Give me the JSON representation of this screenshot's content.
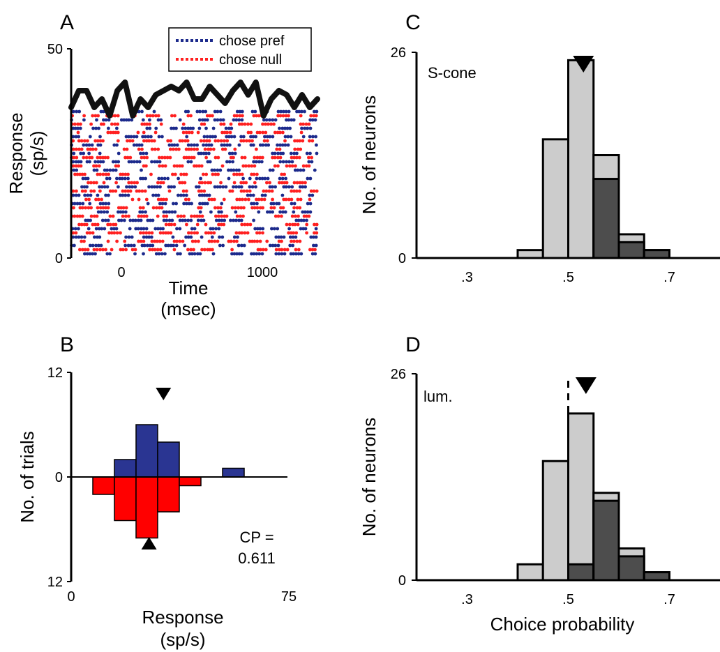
{
  "chart_data": [
    {
      "panel": "A",
      "type": "raster",
      "panel_label": "A",
      "xlabel_line1": "Time",
      "xlabel_line2": "(msec)",
      "ylabel_line1": "Response",
      "ylabel_line2": "(sp/s)",
      "xlim": [
        -300,
        1300
      ],
      "ylim": [
        0,
        50
      ],
      "xticks": [
        0,
        1000
      ],
      "yticks": [
        0,
        50
      ],
      "legend": {
        "placement": "top-right",
        "entries": [
          {
            "label": "chose pref",
            "color": "#1c2a8c"
          },
          {
            "label": "chose null",
            "color": "#ff2020"
          }
        ]
      },
      "raster": {
        "rows": 35,
        "top_value": 35,
        "colors": {
          "pref": "#1c2a8c",
          "null": "#ff2020"
        }
      },
      "psth": {
        "color": "#111111",
        "x": [
          -300,
          -250,
          -200,
          -150,
          -100,
          -50,
          0,
          50,
          100,
          150,
          200,
          250,
          300,
          350,
          400,
          450,
          500,
          550,
          600,
          650,
          700,
          750,
          800,
          850,
          900,
          950,
          1000,
          1050,
          1100,
          1150,
          1200,
          1250,
          1300
        ],
        "y": [
          36,
          40,
          40,
          36,
          38,
          34,
          40,
          42,
          34,
          38,
          36,
          39,
          40,
          41,
          40,
          42,
          38,
          38,
          41,
          39,
          37,
          40,
          42,
          39,
          42,
          34,
          38,
          40,
          39,
          36,
          39,
          36,
          38
        ]
      }
    },
    {
      "panel": "B",
      "type": "bar",
      "panel_label": "B",
      "xlabel_line1": "Response",
      "xlabel_line2": "(sp/s)",
      "ylabel": "No. of trials",
      "xlim": [
        0,
        75
      ],
      "xticks": [
        0,
        75
      ],
      "ytick_labels": [
        "12",
        "0",
        "12"
      ],
      "bin_width": 7.5,
      "pref": {
        "color": "#2a3592",
        "bins": [
          15,
          22.5,
          30,
          37.5,
          52.5
        ],
        "values": [
          2,
          6,
          4,
          0,
          1
        ]
      },
      "null": {
        "color": "#ff0000",
        "bins": [
          7.5,
          15,
          22.5,
          30,
          37.5,
          45
        ],
        "values": [
          2,
          5,
          7,
          4,
          1,
          0
        ]
      },
      "pref_mean": 32,
      "null_mean": 27,
      "annotation_line1": "CP =",
      "annotation_line2": "0.611"
    },
    {
      "panel": "C",
      "type": "bar",
      "panel_label": "C",
      "label": "S-cone",
      "ylabel": "No. of neurons",
      "xlim": [
        0.2,
        0.8
      ],
      "ylim": [
        0,
        26
      ],
      "xticks": [
        ".3",
        ".5",
        ".7"
      ],
      "xtick_values": [
        0.3,
        0.5,
        0.7
      ],
      "yticks": [
        0,
        26
      ],
      "bin_edges": [
        0.4,
        0.45,
        0.5,
        0.55,
        0.6,
        0.65,
        0.7
      ],
      "total": [
        1,
        15,
        25,
        13,
        3,
        1
      ],
      "significant": [
        0,
        0,
        0,
        10,
        2,
        1
      ],
      "colors": {
        "total": "#cccccc",
        "significant": "#4d4d4d"
      },
      "mean": 0.53,
      "reference_line": 0.5
    },
    {
      "panel": "D",
      "type": "bar",
      "panel_label": "D",
      "label": "lum.",
      "ylabel": "No. of neurons",
      "xlabel": "Choice probability",
      "xlim": [
        0.2,
        0.8
      ],
      "ylim": [
        0,
        26
      ],
      "xticks": [
        ".3",
        ".5",
        ".7"
      ],
      "xtick_values": [
        0.3,
        0.5,
        0.7
      ],
      "yticks": [
        0,
        26
      ],
      "bin_edges": [
        0.4,
        0.45,
        0.5,
        0.55,
        0.6,
        0.65,
        0.7
      ],
      "total": [
        2,
        15,
        21,
        11,
        4,
        1
      ],
      "significant": [
        0,
        0,
        2,
        10,
        3,
        1
      ],
      "colors": {
        "total": "#cccccc",
        "significant": "#4d4d4d"
      },
      "mean": 0.535,
      "reference_line": 0.5
    }
  ]
}
